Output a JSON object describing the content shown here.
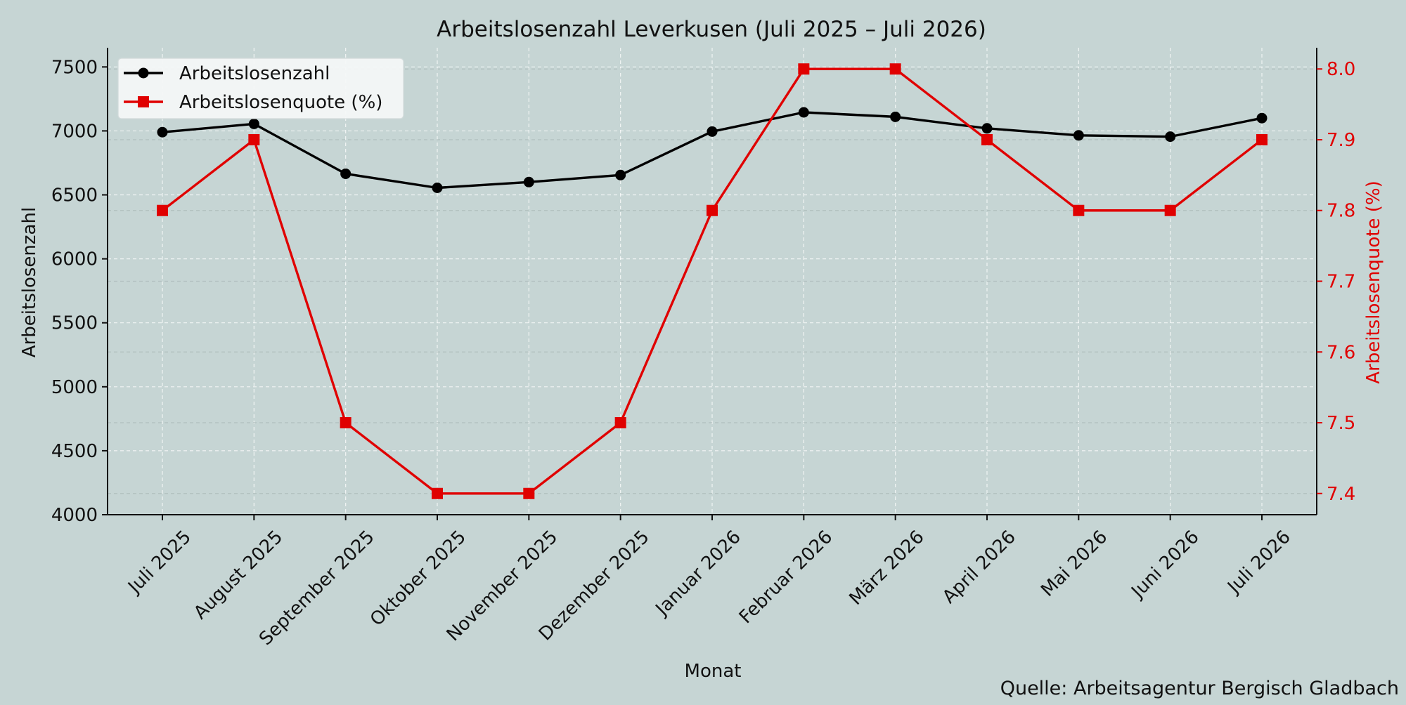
{
  "chart_data": {
    "type": "line",
    "title": "Arbeitslosenzahl Leverkusen (Juli 2025 – Juli 2026)",
    "xlabel": "Monat",
    "ylabel_left": "Arbeitslosenzahl",
    "ylabel_right": "Arbeitslosenquote (%)",
    "source": "Quelle: Arbeitsagentur Bergisch Gladbach",
    "categories": [
      "Juli 2025",
      "August 2025",
      "September 2025",
      "Oktober 2025",
      "November 2025",
      "Dezember 2025",
      "Januar 2026",
      "Februar 2026",
      "März 2026",
      "April 2026",
      "Mai 2026",
      "Juni 2026",
      "Juli 2026"
    ],
    "ylim_left": [
      4000,
      7650
    ],
    "yticks_left": [
      4000,
      4500,
      5000,
      5500,
      6000,
      6500,
      7000,
      7500
    ],
    "ylim_right": [
      7.37,
      8.03
    ],
    "yticks_right": [
      "7.4",
      "7.5",
      "7.6",
      "7.7",
      "7.8",
      "7.9",
      "8.0"
    ],
    "grid": true,
    "legend_position": "top-left",
    "series": [
      {
        "name": "Arbeitslosenzahl",
        "axis": "left",
        "color": "#000000",
        "marker": "circle",
        "values": [
          6990,
          7055,
          6665,
          6555,
          6600,
          6655,
          6995,
          7145,
          7110,
          7020,
          6965,
          6955,
          7100
        ]
      },
      {
        "name": "Arbeitslosenquote (%)",
        "axis": "right",
        "color": "#e00000",
        "marker": "square",
        "values": [
          7.8,
          7.9,
          7.5,
          7.4,
          7.4,
          7.5,
          7.8,
          8.0,
          8.0,
          7.9,
          7.8,
          7.8,
          7.9
        ]
      }
    ]
  }
}
